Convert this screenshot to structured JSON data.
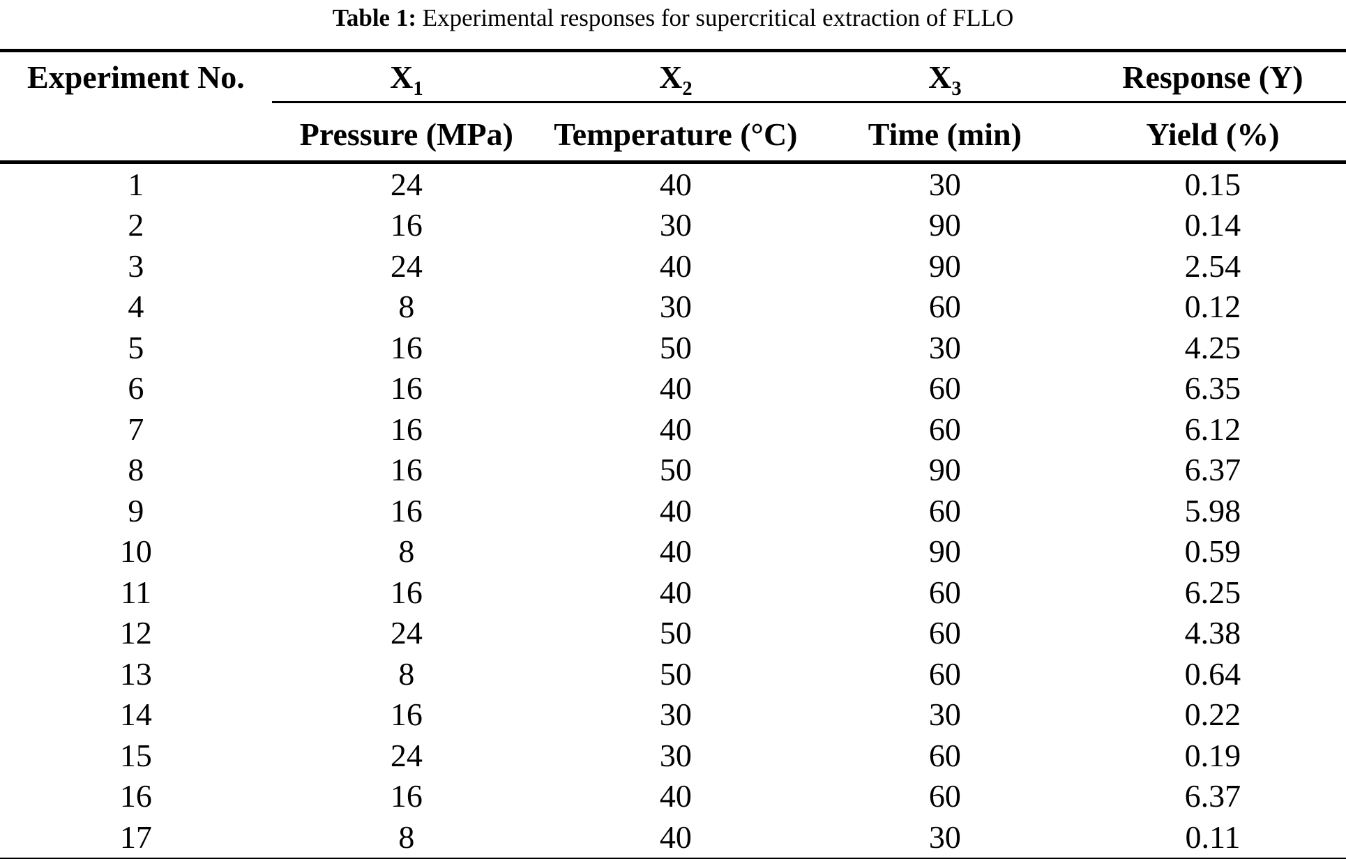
{
  "page": {
    "background_color": "#ffffff",
    "text_color": "#000000"
  },
  "caption": {
    "label": "Table 1:",
    "text": "Experimental responses for supercritical extraction of FLLO"
  },
  "table": {
    "top_header": {
      "col1": "Experiment No.",
      "x_columns": [
        {
          "base": "X",
          "sub": "1"
        },
        {
          "base": "X",
          "sub": "2"
        },
        {
          "base": "X",
          "sub": "3"
        }
      ],
      "response": "Response (Y)"
    },
    "sub_header": {
      "pressure": "Pressure (MPa)",
      "temperature": "Temperature (°C)",
      "time": "Time (min)",
      "yield": "Yield (%)"
    },
    "rows": [
      [
        "1",
        "24",
        "40",
        "30",
        "0.15"
      ],
      [
        "2",
        "16",
        "30",
        "90",
        "0.14"
      ],
      [
        "3",
        "24",
        "40",
        "90",
        "2.54"
      ],
      [
        "4",
        "8",
        "30",
        "60",
        "0.12"
      ],
      [
        "5",
        "16",
        "50",
        "30",
        "4.25"
      ],
      [
        "6",
        "16",
        "40",
        "60",
        "6.35"
      ],
      [
        "7",
        "16",
        "40",
        "60",
        "6.12"
      ],
      [
        "8",
        "16",
        "50",
        "90",
        "6.37"
      ],
      [
        "9",
        "16",
        "40",
        "60",
        "5.98"
      ],
      [
        "10",
        "8",
        "40",
        "90",
        "0.59"
      ],
      [
        "11",
        "16",
        "40",
        "60",
        "6.25"
      ],
      [
        "12",
        "24",
        "50",
        "60",
        "4.38"
      ],
      [
        "13",
        "8",
        "50",
        "60",
        "0.64"
      ],
      [
        "14",
        "16",
        "30",
        "30",
        "0.22"
      ],
      [
        "15",
        "24",
        "30",
        "60",
        "0.19"
      ],
      [
        "16",
        "16",
        "40",
        "60",
        "6.37"
      ],
      [
        "17",
        "8",
        "40",
        "30",
        "0.11"
      ]
    ]
  }
}
